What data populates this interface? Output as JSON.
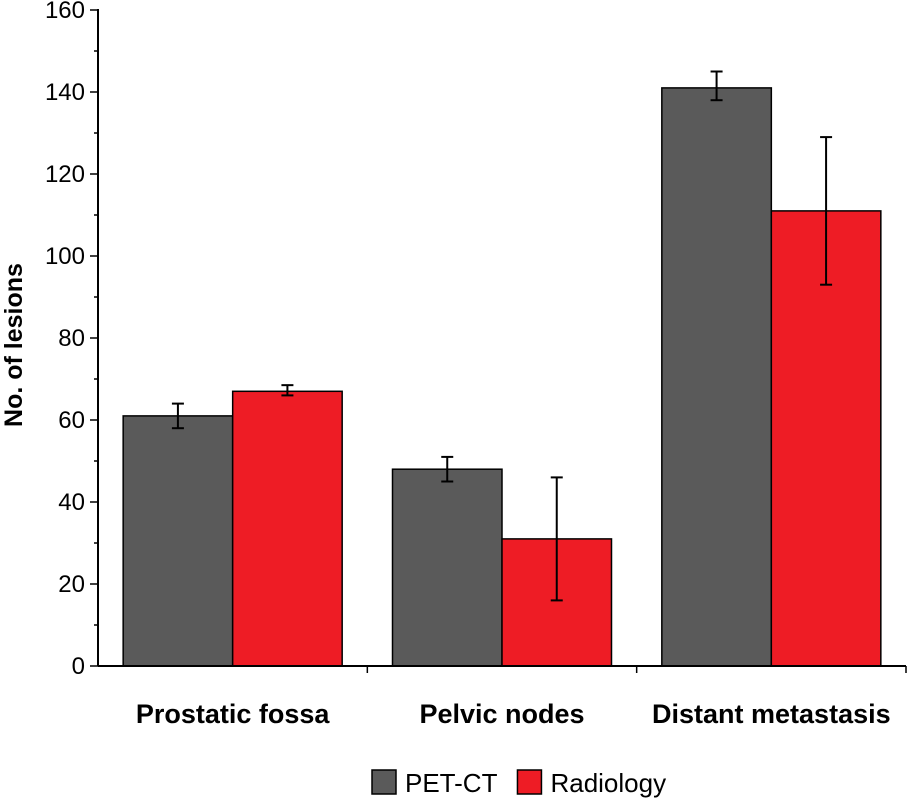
{
  "chart_data": {
    "type": "bar",
    "title": "",
    "xlabel": "",
    "ylabel": "No. of lesions",
    "ylim": [
      0,
      160
    ],
    "yticks": [
      "0",
      "20",
      "40",
      "60",
      "80",
      "100",
      "120",
      "140",
      "160"
    ],
    "categories": [
      "Prostatic fossa",
      "Pelvic nodes",
      "Distant metastasis"
    ],
    "series": [
      {
        "name": "PET-CT",
        "color": "#5a5a5a",
        "values": [
          61,
          48,
          141
        ],
        "error": [
          [
            58,
            64
          ],
          [
            45,
            51
          ],
          [
            138,
            145
          ]
        ]
      },
      {
        "name": "Radiology",
        "color": "#ee1c25",
        "values": [
          67,
          31,
          111
        ],
        "error": [
          [
            66,
            68.5
          ],
          [
            16,
            46
          ],
          [
            93,
            129
          ]
        ]
      }
    ],
    "legend": {
      "position": "bottom-center"
    },
    "grid": false
  }
}
